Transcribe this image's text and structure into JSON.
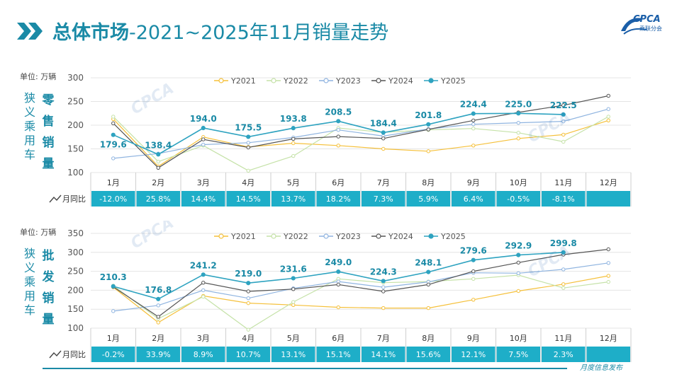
{
  "header": {
    "title_bold": "总体市场",
    "title_rest": "-2021~2025年11月销量走势",
    "logo_text": "CPCA",
    "logo_sub": "乘联分会",
    "accent": "#1a8aa6"
  },
  "footer": {
    "text": "月度信息发布"
  },
  "chart_data": [
    {
      "type": "line",
      "title": "零售销量",
      "side_label": "狭义乘用车",
      "unit_label": "单位: 万辆",
      "categories": [
        "1月",
        "2月",
        "3月",
        "4月",
        "5月",
        "6月",
        "7月",
        "8月",
        "9月",
        "10月",
        "11月",
        "12月"
      ],
      "ylim": [
        100,
        300
      ],
      "yticks": [
        100,
        150,
        200,
        250,
        300
      ],
      "series": [
        {
          "name": "Y2021",
          "color": "#f5c03a",
          "values": [
            213,
            113,
            175,
            154,
            162,
            157,
            150,
            145,
            157,
            172,
            180,
            210
          ]
        },
        {
          "name": "Y2022",
          "color": "#c5e2a8",
          "values": [
            218,
            123,
            157,
            104,
            135,
            194,
            185,
            190,
            193,
            184,
            165,
            218
          ]
        },
        {
          "name": "Y2023",
          "color": "#8fb4e0",
          "values": [
            130,
            140,
            159,
            163,
            174,
            190,
            177,
            192,
            202,
            205,
            208,
            234
          ]
        },
        {
          "name": "Y2024",
          "color": "#555555",
          "values": [
            204,
            110,
            170,
            153,
            171,
            176,
            172,
            191,
            210,
            227,
            242,
            262
          ]
        },
        {
          "name": "Y2025",
          "color": "#2ea3c0",
          "values": [
            179.6,
            138.4,
            194.0,
            175.5,
            193.8,
            208.5,
            184.4,
            201.8,
            224.4,
            225.0,
            222.5,
            null
          ]
        }
      ],
      "data_labels": [
        "179.6",
        "138.4",
        "194.0",
        "175.5",
        "193.8",
        "208.5",
        "184.4",
        "201.8",
        "224.4",
        "225.0",
        "222.5"
      ],
      "yoy_label": "月同比",
      "yoy": [
        "-12.0%",
        "25.8%",
        "14.4%",
        "14.5%",
        "13.7%",
        "18.2%",
        "7.3%",
        "5.9%",
        "6.4%",
        "-0.5%",
        "-8.1%",
        ""
      ]
    },
    {
      "type": "line",
      "title": "批发销量",
      "side_label": "狭义乘用车",
      "unit_label": "单位: 万辆",
      "categories": [
        "1月",
        "2月",
        "3月",
        "4月",
        "5月",
        "6月",
        "7月",
        "8月",
        "9月",
        "10月",
        "11月",
        "12月"
      ],
      "ylim": [
        100,
        350
      ],
      "yticks": [
        100,
        150,
        200,
        250,
        300,
        350
      ],
      "series": [
        {
          "name": "Y2021",
          "color": "#f5c03a",
          "values": [
            208,
            115,
            185,
            166,
            161,
            155,
            153,
            153,
            175,
            198,
            216,
            238
          ]
        },
        {
          "name": "Y2022",
          "color": "#c5e2a8",
          "values": [
            212,
            125,
            183,
            96,
            169,
            230,
            220,
            223,
            230,
            240,
            206,
            222
          ]
        },
        {
          "name": "Y2023",
          "color": "#8fb4e0",
          "values": [
            145,
            160,
            200,
            179,
            205,
            223,
            208,
            222,
            246,
            245,
            255,
            272
          ]
        },
        {
          "name": "Y2024",
          "color": "#555555",
          "values": [
            209,
            130,
            220,
            197,
            203,
            215,
            197,
            215,
            250,
            273,
            294,
            308
          ]
        },
        {
          "name": "Y2025",
          "color": "#2ea3c0",
          "values": [
            210.3,
            176.8,
            241.2,
            219.0,
            231.6,
            249.0,
            224.3,
            248.1,
            279.6,
            292.9,
            299.8,
            null
          ]
        }
      ],
      "data_labels": [
        "210.3",
        "176.8",
        "241.2",
        "219.0",
        "231.6",
        "249.0",
        "224.3",
        "248.1",
        "279.6",
        "292.9",
        "299.8"
      ],
      "yoy_label": "月同比",
      "yoy": [
        "-0.2%",
        "33.9%",
        "8.9%",
        "10.7%",
        "13.1%",
        "15.1%",
        "14.1%",
        "15.6%",
        "12.1%",
        "7.5%",
        "2.3%",
        ""
      ]
    }
  ]
}
